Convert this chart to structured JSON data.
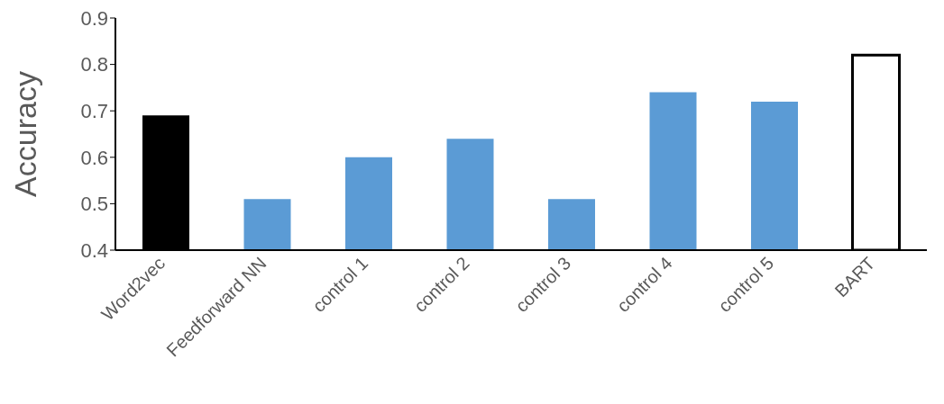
{
  "chart_data": {
    "type": "bar",
    "ylabel": "Accuracy",
    "categories": [
      "Word2vec",
      "Feedforward NN",
      "control 1",
      "control 2",
      "control 3",
      "control 4",
      "control 5",
      "BART"
    ],
    "values": [
      0.69,
      0.51,
      0.6,
      0.64,
      0.51,
      0.74,
      0.72,
      0.82
    ],
    "colors": [
      "#000000",
      "#5b9bd5",
      "#5b9bd5",
      "#5b9bd5",
      "#5b9bd5",
      "#5b9bd5",
      "#5b9bd5",
      "#ffffff"
    ],
    "ylim": [
      0.4,
      0.9
    ],
    "yticks": [
      0.4,
      0.5,
      0.6,
      0.7,
      0.8,
      0.9
    ],
    "grid": false
  }
}
